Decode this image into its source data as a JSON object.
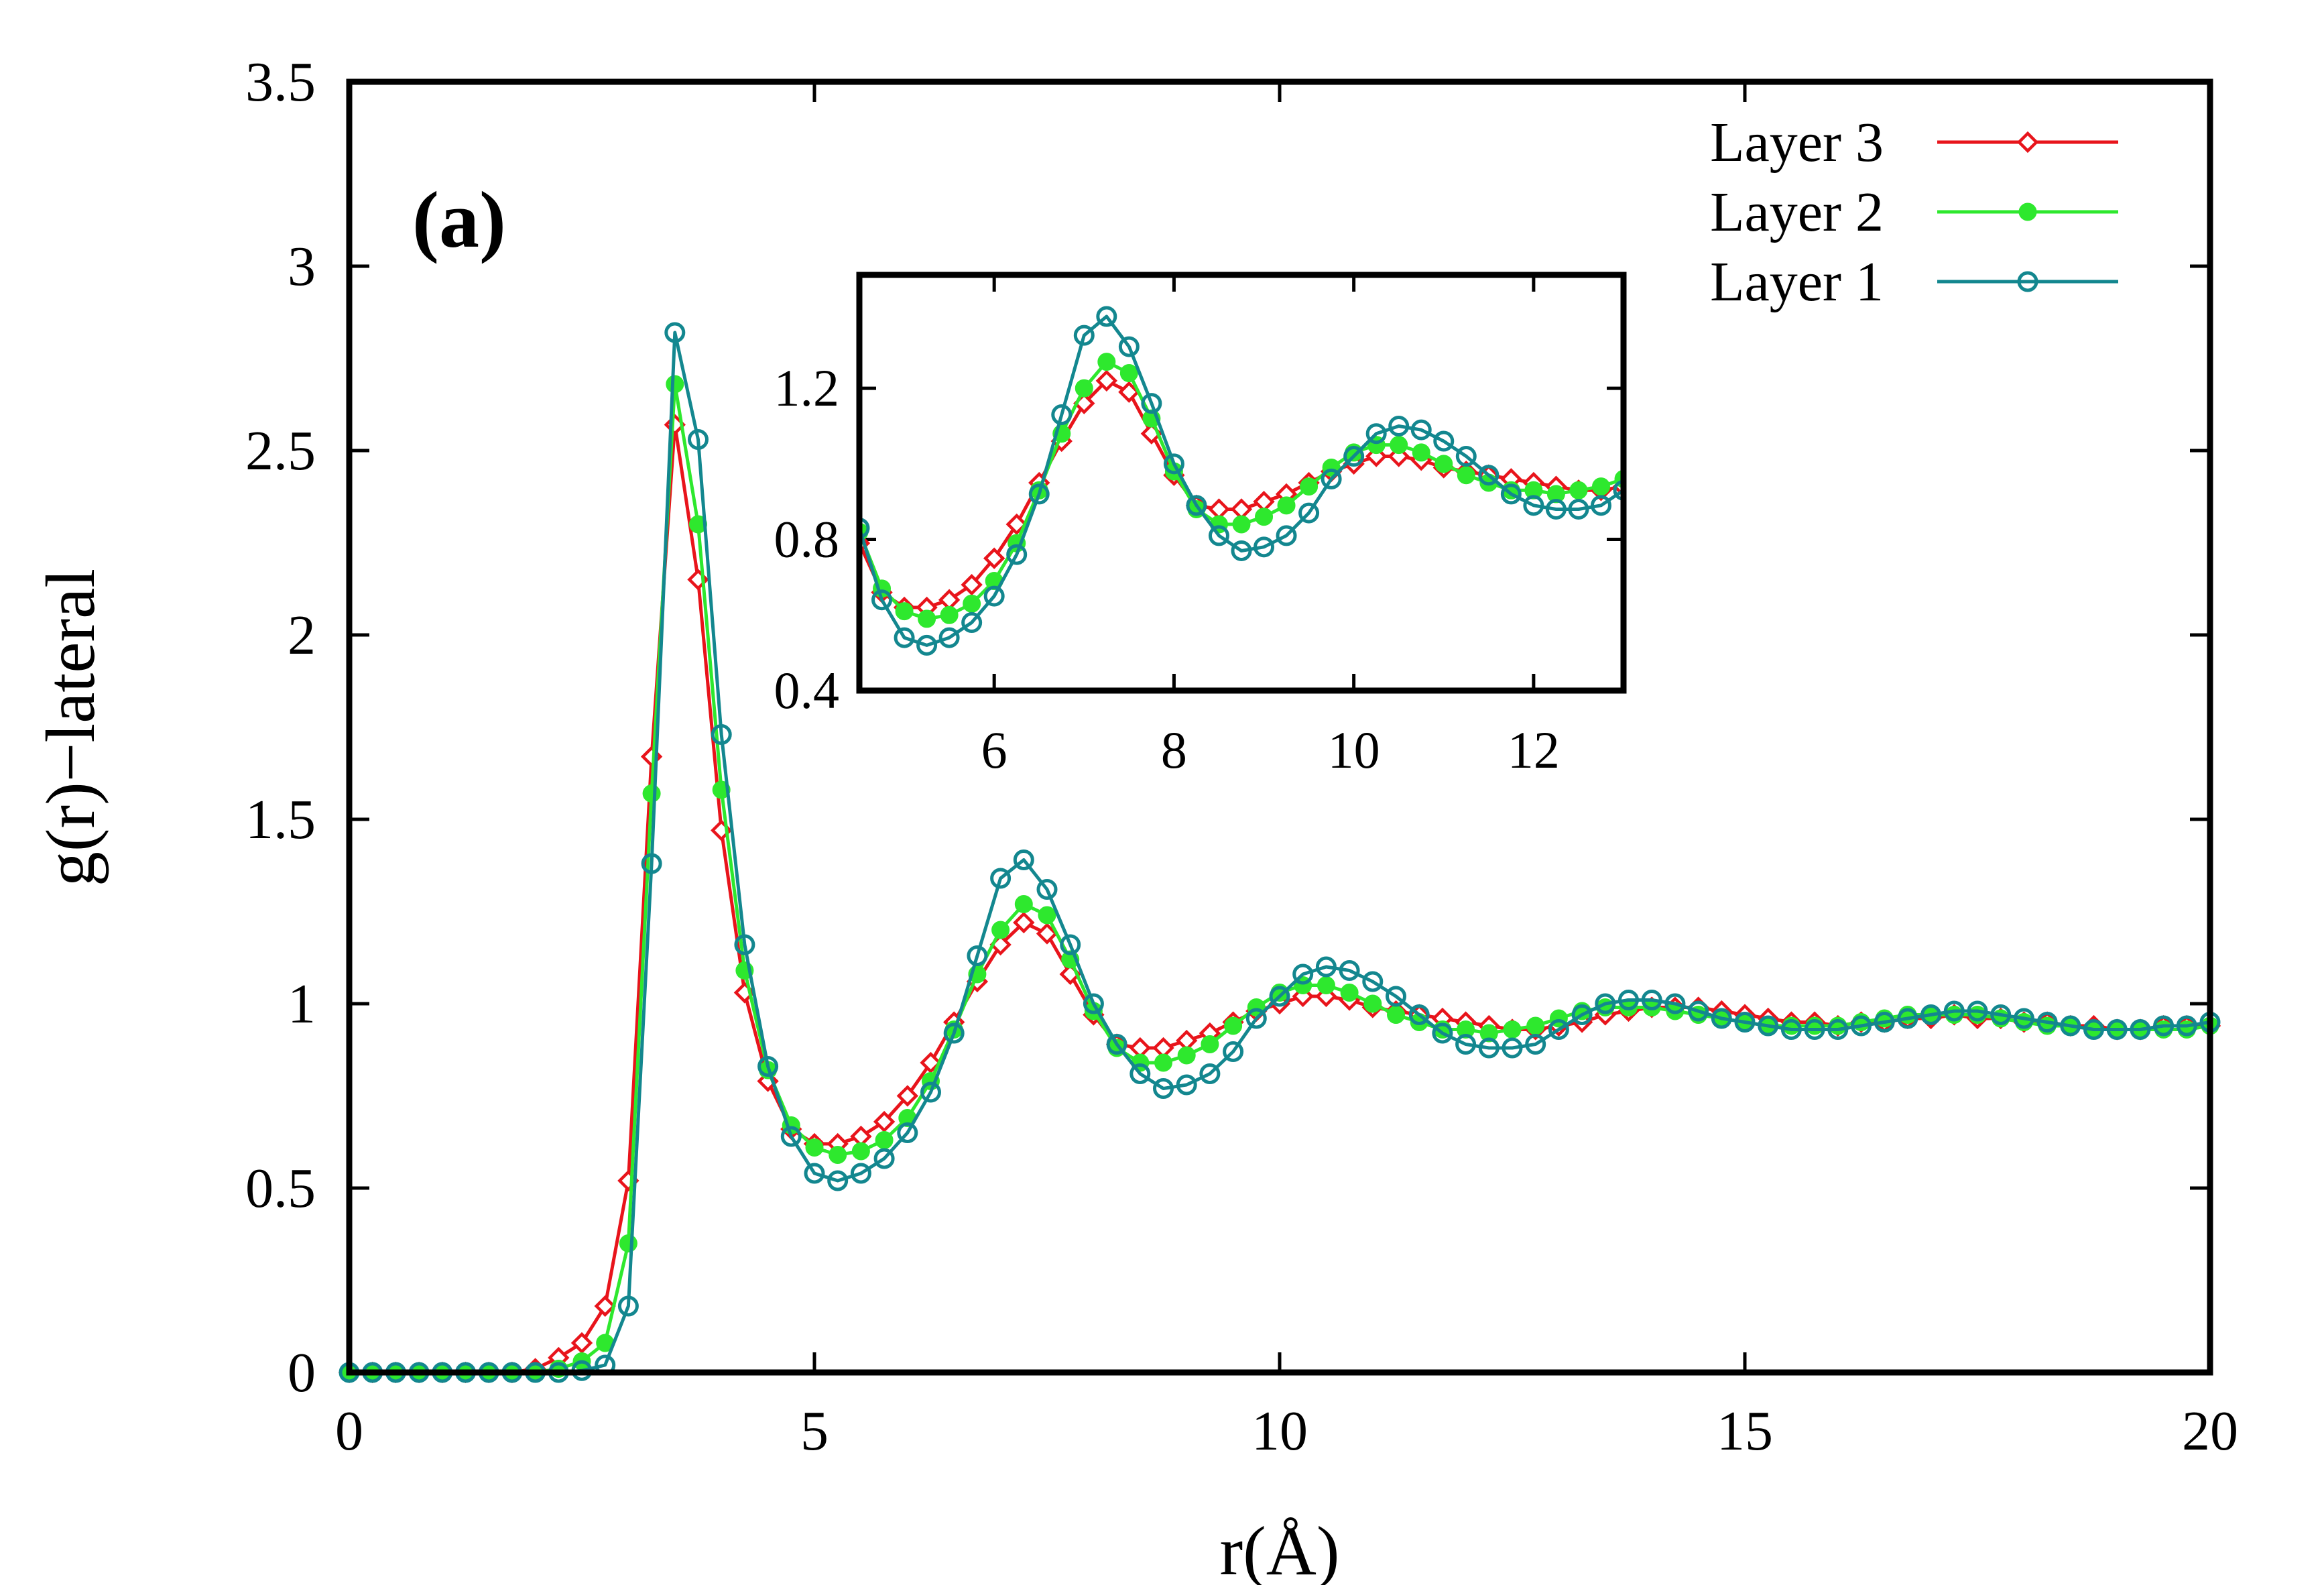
{
  "chart_data": [
    {
      "type": "line",
      "role": "main",
      "panel_label": "(a)",
      "xlabel": "r(Å)",
      "ylabel": "g(r)−lateral",
      "xlim": [
        0,
        20
      ],
      "ylim": [
        0,
        3.5
      ],
      "xticks": [
        0,
        5,
        10,
        15,
        20
      ],
      "xtick_labels": [
        "0",
        "5",
        "10",
        "15",
        "20"
      ],
      "yticks": [
        0,
        0.5,
        1,
        1.5,
        2,
        2.5,
        3,
        3.5
      ],
      "ytick_labels": [
        "0",
        "0.5",
        "1",
        "1.5",
        "2",
        "2.5",
        "3",
        "3.5"
      ],
      "legend_position": "top-right",
      "series": [
        {
          "name": "Layer 3",
          "color": "#e8141b",
          "marker": "open-diamond",
          "points": [
            [
              0,
              0
            ],
            [
              0.25,
              0
            ],
            [
              0.5,
              0
            ],
            [
              0.75,
              0
            ],
            [
              1,
              0
            ],
            [
              1.25,
              0
            ],
            [
              1.5,
              0
            ],
            [
              1.75,
              0
            ],
            [
              2,
              0.01
            ],
            [
              2.25,
              0.04
            ],
            [
              2.5,
              0.08
            ],
            [
              2.75,
              0.18
            ],
            [
              3,
              0.52
            ],
            [
              3.25,
              1.67
            ],
            [
              3.5,
              2.57
            ],
            [
              3.75,
              2.15
            ],
            [
              4,
              1.47
            ],
            [
              4.25,
              1.03
            ],
            [
              4.5,
              0.79
            ],
            [
              4.75,
              0.66
            ],
            [
              5,
              0.62
            ],
            [
              5.25,
              0.62
            ],
            [
              5.5,
              0.64
            ],
            [
              5.75,
              0.68
            ],
            [
              6,
              0.75
            ],
            [
              6.25,
              0.84
            ],
            [
              6.5,
              0.95
            ],
            [
              6.75,
              1.06
            ],
            [
              7,
              1.16
            ],
            [
              7.25,
              1.22
            ],
            [
              7.5,
              1.19
            ],
            [
              7.75,
              1.08
            ],
            [
              8,
              0.97
            ],
            [
              8.25,
              0.89
            ],
            [
              8.5,
              0.88
            ],
            [
              8.75,
              0.88
            ],
            [
              9,
              0.9
            ],
            [
              9.25,
              0.92
            ],
            [
              9.5,
              0.95
            ],
            [
              9.75,
              0.98
            ],
            [
              10,
              1.0
            ],
            [
              10.25,
              1.02
            ],
            [
              10.5,
              1.02
            ],
            [
              10.75,
              1.01
            ],
            [
              11,
              0.99
            ],
            [
              11.25,
              0.98
            ],
            [
              11.5,
              0.97
            ],
            [
              11.75,
              0.96
            ],
            [
              12,
              0.95
            ],
            [
              12.25,
              0.94
            ],
            [
              12.5,
              0.93
            ],
            [
              12.75,
              0.93
            ],
            [
              13,
              0.94
            ],
            [
              13.25,
              0.95
            ],
            [
              13.5,
              0.97
            ],
            [
              13.75,
              0.98
            ],
            [
              14,
              0.99
            ],
            [
              14.25,
              0.99
            ],
            [
              14.5,
              0.99
            ],
            [
              14.75,
              0.98
            ],
            [
              15,
              0.97
            ],
            [
              15.25,
              0.96
            ],
            [
              15.5,
              0.95
            ],
            [
              15.75,
              0.95
            ],
            [
              16,
              0.94
            ],
            [
              16.25,
              0.95
            ],
            [
              16.5,
              0.95
            ],
            [
              16.75,
              0.96
            ],
            [
              17,
              0.96
            ],
            [
              17.25,
              0.97
            ],
            [
              17.5,
              0.96
            ],
            [
              17.75,
              0.96
            ],
            [
              18,
              0.95
            ],
            [
              18.25,
              0.95
            ],
            [
              18.5,
              0.94
            ],
            [
              18.75,
              0.94
            ],
            [
              19,
              0.93
            ],
            [
              19.25,
              0.93
            ],
            [
              19.5,
              0.94
            ],
            [
              19.75,
              0.94
            ],
            [
              20,
              0.94
            ]
          ]
        },
        {
          "name": "Layer 2",
          "color": "#2ee82e",
          "marker": "filled-circle",
          "points": [
            [
              0,
              0
            ],
            [
              0.25,
              0
            ],
            [
              0.5,
              0
            ],
            [
              0.75,
              0
            ],
            [
              1,
              0
            ],
            [
              1.25,
              0
            ],
            [
              1.5,
              0
            ],
            [
              1.75,
              0
            ],
            [
              2,
              0
            ],
            [
              2.25,
              0.01
            ],
            [
              2.5,
              0.03
            ],
            [
              2.75,
              0.08
            ],
            [
              3,
              0.35
            ],
            [
              3.25,
              1.57
            ],
            [
              3.5,
              2.68
            ],
            [
              3.75,
              2.3
            ],
            [
              4,
              1.58
            ],
            [
              4.25,
              1.09
            ],
            [
              4.5,
              0.82
            ],
            [
              4.75,
              0.67
            ],
            [
              5,
              0.61
            ],
            [
              5.25,
              0.59
            ],
            [
              5.5,
              0.6
            ],
            [
              5.75,
              0.63
            ],
            [
              6,
              0.69
            ],
            [
              6.25,
              0.79
            ],
            [
              6.5,
              0.93
            ],
            [
              6.75,
              1.08
            ],
            [
              7,
              1.2
            ],
            [
              7.25,
              1.27
            ],
            [
              7.5,
              1.24
            ],
            [
              7.75,
              1.12
            ],
            [
              8,
              0.98
            ],
            [
              8.25,
              0.88
            ],
            [
              8.5,
              0.84
            ],
            [
              8.75,
              0.84
            ],
            [
              9,
              0.86
            ],
            [
              9.25,
              0.89
            ],
            [
              9.5,
              0.94
            ],
            [
              9.75,
              0.99
            ],
            [
              10,
              1.03
            ],
            [
              10.25,
              1.05
            ],
            [
              10.5,
              1.05
            ],
            [
              10.75,
              1.03
            ],
            [
              11,
              1.0
            ],
            [
              11.25,
              0.97
            ],
            [
              11.5,
              0.95
            ],
            [
              11.75,
              0.93
            ],
            [
              12,
              0.93
            ],
            [
              12.25,
              0.92
            ],
            [
              12.5,
              0.93
            ],
            [
              12.75,
              0.94
            ],
            [
              13,
              0.96
            ],
            [
              13.25,
              0.98
            ],
            [
              13.5,
              0.99
            ],
            [
              13.75,
              0.99
            ],
            [
              14,
              0.99
            ],
            [
              14.25,
              0.98
            ],
            [
              14.5,
              0.97
            ],
            [
              14.75,
              0.96
            ],
            [
              15,
              0.95
            ],
            [
              15.25,
              0.94
            ],
            [
              15.5,
              0.94
            ],
            [
              15.75,
              0.94
            ],
            [
              16,
              0.94
            ],
            [
              16.25,
              0.95
            ],
            [
              16.5,
              0.96
            ],
            [
              16.75,
              0.97
            ],
            [
              17,
              0.97
            ],
            [
              17.25,
              0.97
            ],
            [
              17.5,
              0.97
            ],
            [
              17.75,
              0.96
            ],
            [
              18,
              0.95
            ],
            [
              18.25,
              0.94
            ],
            [
              18.5,
              0.94
            ],
            [
              18.75,
              0.93
            ],
            [
              19,
              0.93
            ],
            [
              19.25,
              0.93
            ],
            [
              19.5,
              0.93
            ],
            [
              19.75,
              0.93
            ],
            [
              20,
              0.94
            ]
          ]
        },
        {
          "name": "Layer 1",
          "color": "#13878f",
          "marker": "open-circle",
          "points": [
            [
              0,
              0
            ],
            [
              0.25,
              0
            ],
            [
              0.5,
              0
            ],
            [
              0.75,
              0
            ],
            [
              1,
              0
            ],
            [
              1.25,
              0
            ],
            [
              1.5,
              0
            ],
            [
              1.75,
              0
            ],
            [
              2,
              0
            ],
            [
              2.25,
              0
            ],
            [
              2.5,
              0.005
            ],
            [
              2.75,
              0.02
            ],
            [
              3,
              0.18
            ],
            [
              3.25,
              1.38
            ],
            [
              3.5,
              2.82
            ],
            [
              3.75,
              2.53
            ],
            [
              4,
              1.73
            ],
            [
              4.25,
              1.16
            ],
            [
              4.5,
              0.83
            ],
            [
              4.75,
              0.64
            ],
            [
              5,
              0.54
            ],
            [
              5.25,
              0.52
            ],
            [
              5.5,
              0.54
            ],
            [
              5.75,
              0.58
            ],
            [
              6,
              0.65
            ],
            [
              6.25,
              0.76
            ],
            [
              6.5,
              0.92
            ],
            [
              6.75,
              1.13
            ],
            [
              7,
              1.34
            ],
            [
              7.25,
              1.39
            ],
            [
              7.5,
              1.31
            ],
            [
              7.75,
              1.16
            ],
            [
              8,
              1.0
            ],
            [
              8.25,
              0.89
            ],
            [
              8.5,
              0.81
            ],
            [
              8.75,
              0.77
            ],
            [
              9,
              0.78
            ],
            [
              9.25,
              0.81
            ],
            [
              9.5,
              0.87
            ],
            [
              9.75,
              0.96
            ],
            [
              10,
              1.02
            ],
            [
              10.25,
              1.08
            ],
            [
              10.5,
              1.1
            ],
            [
              10.75,
              1.09
            ],
            [
              11,
              1.06
            ],
            [
              11.25,
              1.02
            ],
            [
              11.5,
              0.97
            ],
            [
              11.75,
              0.92
            ],
            [
              12,
              0.89
            ],
            [
              12.25,
              0.88
            ],
            [
              12.5,
              0.88
            ],
            [
              12.75,
              0.89
            ],
            [
              13,
              0.93
            ],
            [
              13.25,
              0.97
            ],
            [
              13.5,
              1.0
            ],
            [
              13.75,
              1.01
            ],
            [
              14,
              1.01
            ],
            [
              14.25,
              1.0
            ],
            [
              14.5,
              0.98
            ],
            [
              14.75,
              0.96
            ],
            [
              15,
              0.95
            ],
            [
              15.25,
              0.94
            ],
            [
              15.5,
              0.93
            ],
            [
              15.75,
              0.93
            ],
            [
              16,
              0.93
            ],
            [
              16.25,
              0.94
            ],
            [
              16.5,
              0.95
            ],
            [
              16.75,
              0.96
            ],
            [
              17,
              0.97
            ],
            [
              17.25,
              0.98
            ],
            [
              17.5,
              0.98
            ],
            [
              17.75,
              0.97
            ],
            [
              18,
              0.96
            ],
            [
              18.25,
              0.95
            ],
            [
              18.5,
              0.94
            ],
            [
              18.75,
              0.93
            ],
            [
              19,
              0.93
            ],
            [
              19.25,
              0.93
            ],
            [
              19.5,
              0.94
            ],
            [
              19.75,
              0.94
            ],
            [
              20,
              0.95
            ]
          ]
        }
      ]
    },
    {
      "type": "line",
      "role": "inset",
      "xlim": [
        4.5,
        13
      ],
      "ylim": [
        0.4,
        1.5
      ],
      "xticks": [
        6,
        8,
        10,
        12
      ],
      "xtick_labels": [
        "6",
        "8",
        "10",
        "12"
      ],
      "yticks": [
        0.4,
        0.8,
        1.2
      ],
      "ytick_labels": [
        "0.4",
        "0.8",
        "1.2"
      ],
      "series_source": "same three series as main panel, shown over r = 4.5–13 Å"
    }
  ]
}
